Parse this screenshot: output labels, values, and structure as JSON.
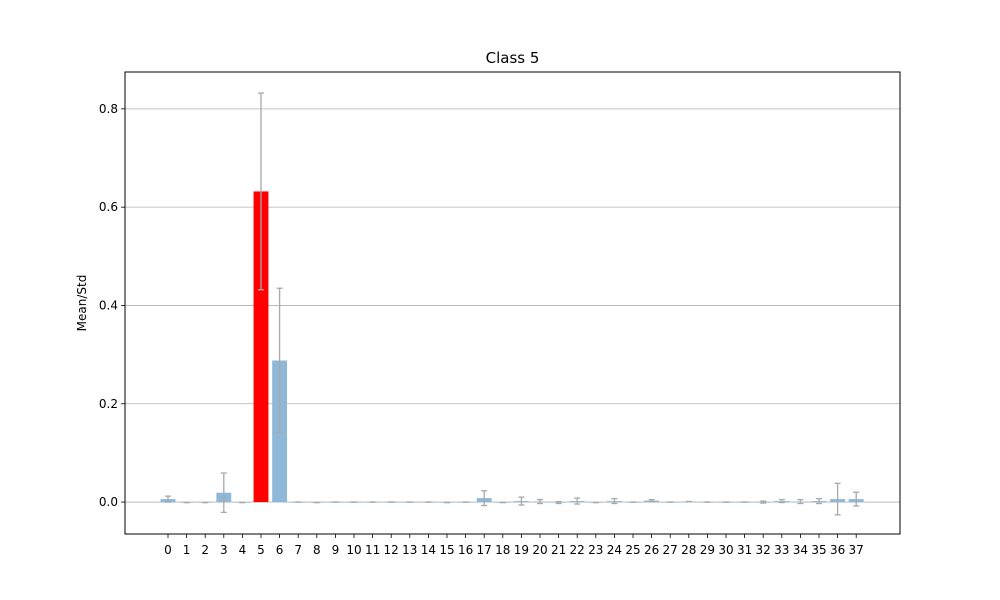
{
  "chart_data": {
    "type": "bar",
    "title": "Class 5",
    "xlabel": "",
    "ylabel": "Mean/Std",
    "ylim": [
      -0.065,
      0.875
    ],
    "yticks": [
      0.0,
      0.2,
      0.4,
      0.6,
      0.8
    ],
    "ytick_labels": [
      "0.0",
      "0.2",
      "0.4",
      "0.6",
      "0.8"
    ],
    "grid": "y",
    "categories": [
      "0",
      "1",
      "2",
      "3",
      "4",
      "5",
      "6",
      "7",
      "8",
      "9",
      "10",
      "11",
      "12",
      "13",
      "14",
      "15",
      "16",
      "17",
      "18",
      "19",
      "20",
      "21",
      "22",
      "23",
      "24",
      "25",
      "26",
      "27",
      "28",
      "29",
      "30",
      "31",
      "32",
      "33",
      "34",
      "35",
      "36",
      "37"
    ],
    "values": [
      0.006,
      -0.001,
      -0.001,
      0.019,
      -0.001,
      0.632,
      0.288,
      0.0,
      -0.001,
      0.0,
      0.0,
      0.0,
      0.0,
      0.0,
      0.0,
      -0.001,
      0.0,
      0.008,
      -0.001,
      0.002,
      0.001,
      -0.001,
      0.002,
      -0.001,
      0.002,
      0.0,
      0.003,
      0.0,
      0.001,
      0.0,
      0.0,
      0.0,
      0.0,
      0.002,
      0.001,
      0.002,
      0.006,
      0.006
    ],
    "errors": [
      0.006,
      0.0,
      0.0,
      0.04,
      0.0,
      0.2,
      0.147,
      0.0,
      0.0,
      0.0,
      0.0,
      0.0,
      0.0,
      0.0,
      0.0,
      0.0,
      0.0,
      0.015,
      0.0,
      0.008,
      0.004,
      0.002,
      0.006,
      0.0,
      0.005,
      0.0,
      0.002,
      0.0,
      0.0,
      0.0,
      0.0,
      0.0,
      0.002,
      0.003,
      0.004,
      0.005,
      0.032,
      0.014
    ],
    "highlight_index": 5,
    "colors": {
      "bar": "#8fb8d8",
      "highlight": "#ff0000",
      "error": "#a8a8a8",
      "grid": "#b0b0b0"
    }
  }
}
